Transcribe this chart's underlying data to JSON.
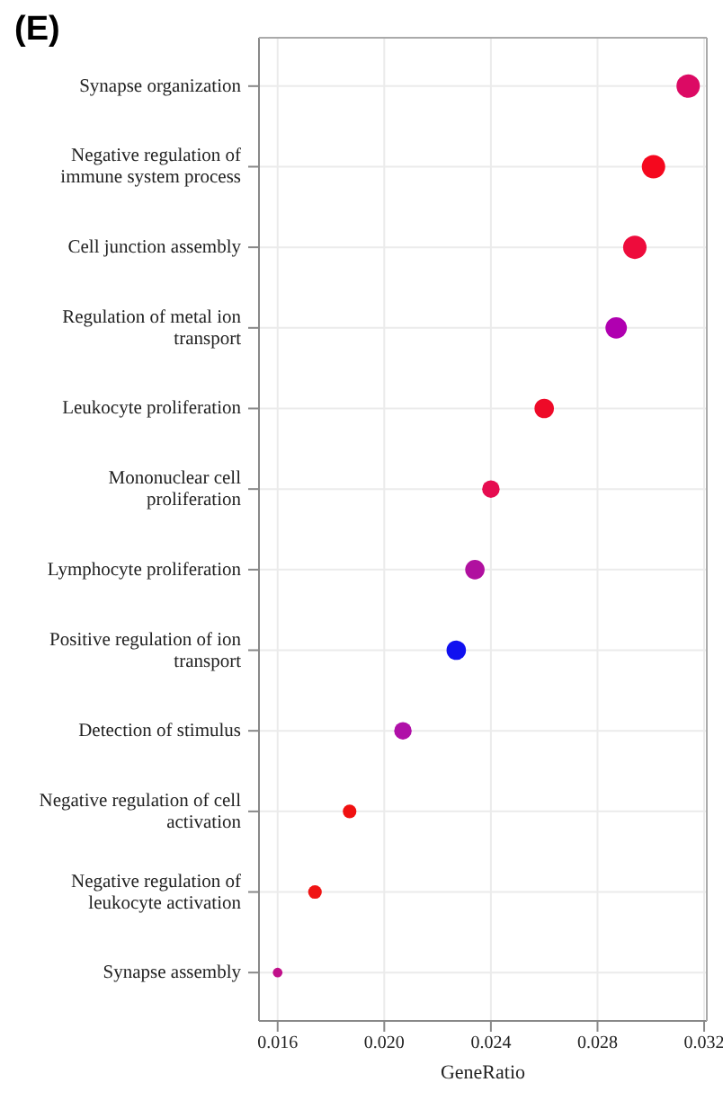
{
  "chart_data": {
    "type": "bubble",
    "title": "(E)",
    "xlabel": "GeneRatio",
    "orientation": "horizontal",
    "categories": [
      "Synapse organization",
      "Negative regulation of immune system process",
      "Cell junction assembly",
      "Regulation of metal ion transport",
      "Leukocyte proliferation",
      "Mononuclear cell proliferation",
      "Lymphocyte proliferation",
      "Positive regulation of ion transport",
      "Detection of stimulus",
      "Negative regulation of cell activation",
      "Negative regulation of leukocyte activation",
      "Synapse assembly"
    ],
    "values": [
      0.0314,
      0.0301,
      0.0294,
      0.0287,
      0.026,
      0.024,
      0.0234,
      0.0227,
      0.0207,
      0.0187,
      0.0174,
      0.016
    ],
    "sizes": [
      1,
      1,
      1,
      0.84,
      0.69,
      0.56,
      0.69,
      0.69,
      0.56,
      0.34,
      0.34,
      0.17
    ],
    "colors": [
      "#dc0a64",
      "#f5081e",
      "#ee0c3c",
      "#b000b0",
      "#ee0a28",
      "#e60c50",
      "#b0109f",
      "#1010f0",
      "#b010a8",
      "#f01010",
      "#f01414",
      "#c0108a"
    ],
    "xlim": [
      0.0153,
      0.0321
    ],
    "xticks": [
      0.016,
      {
        "value": 0.02,
        "label": "0.020"
      },
      0.024,
      0.028,
      0.032
    ],
    "grid": true
  }
}
